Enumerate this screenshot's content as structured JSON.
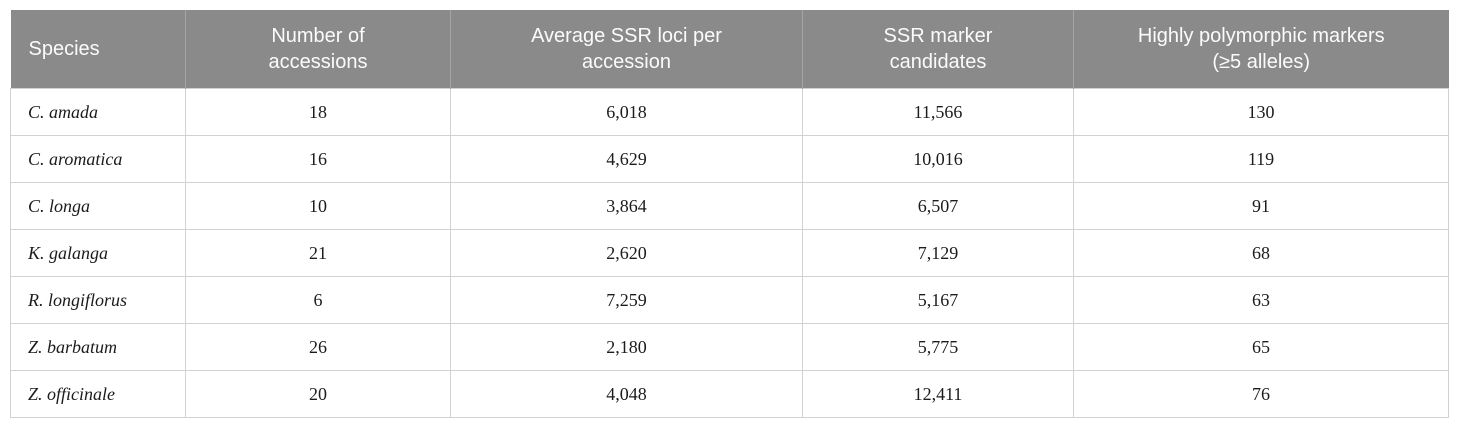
{
  "table": {
    "columns": [
      {
        "label": "Species"
      },
      {
        "label": "Number of\naccessions"
      },
      {
        "label": "Average SSR loci per\naccession"
      },
      {
        "label": "SSR marker\ncandidates"
      },
      {
        "label": "Highly polymorphic markers\n(≥5 alleles)"
      }
    ],
    "rows": [
      [
        "C. amada",
        "18",
        "6,018",
        "11,566",
        "130"
      ],
      [
        "C. aromatica",
        "16",
        "4,629",
        "10,016",
        "119"
      ],
      [
        "C. longa",
        "10",
        "3,864",
        "6,507",
        "91"
      ],
      [
        "K. galanga",
        "21",
        "2,620",
        "7,129",
        "68"
      ],
      [
        "R. longiflorus",
        "6",
        "7,259",
        "5,167",
        "63"
      ],
      [
        "Z. barbatum",
        "26",
        "2,180",
        "5,775",
        "65"
      ],
      [
        "Z. officinale",
        "20",
        "4,048",
        "12,411",
        "76"
      ]
    ]
  },
  "colors": {
    "header_background": "#8a8a8a",
    "header_text": "#fbfbfb",
    "body_text": "#1c1c1c",
    "border": "#d2d2d2",
    "header_divider": "#a4a4a4"
  }
}
